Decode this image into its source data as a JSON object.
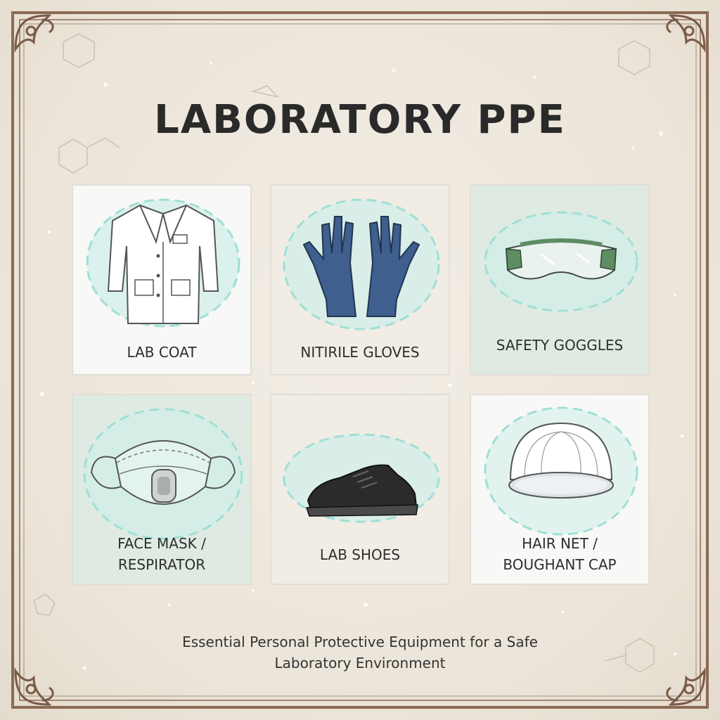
{
  "title": "LABORATORY PPE",
  "items": [
    {
      "label": "LAB COAT",
      "icon": "lab-coat-icon",
      "bg": "white"
    },
    {
      "label": "NITIRILE GLOVES",
      "icon": "gloves-icon",
      "bg": "cream"
    },
    {
      "label": "SAFETY GOGGLES",
      "icon": "goggles-icon",
      "bg": "mint"
    },
    {
      "label_line1": "FACE MASK /",
      "label_line2": "RESPIRATOR",
      "icon": "respirator-mask-icon",
      "bg": "mint"
    },
    {
      "label": "LAB SHOES",
      "icon": "shoe-icon",
      "bg": "cream"
    },
    {
      "label_line1": "HAIR NET /",
      "label_line2": "BOUGHANT CAP",
      "icon": "hair-cap-icon",
      "bg": "white"
    }
  ],
  "footer": {
    "line1": "Essential Personal Protective Equipment for a Safe",
    "line2": "Laboratory Environment"
  },
  "colors": {
    "border": "#8b6a55",
    "splash": "#9fdfd6",
    "glove": "#3f5f8f",
    "goggle_frame": "#5e8c63",
    "shoe": "#2b2b2b"
  }
}
